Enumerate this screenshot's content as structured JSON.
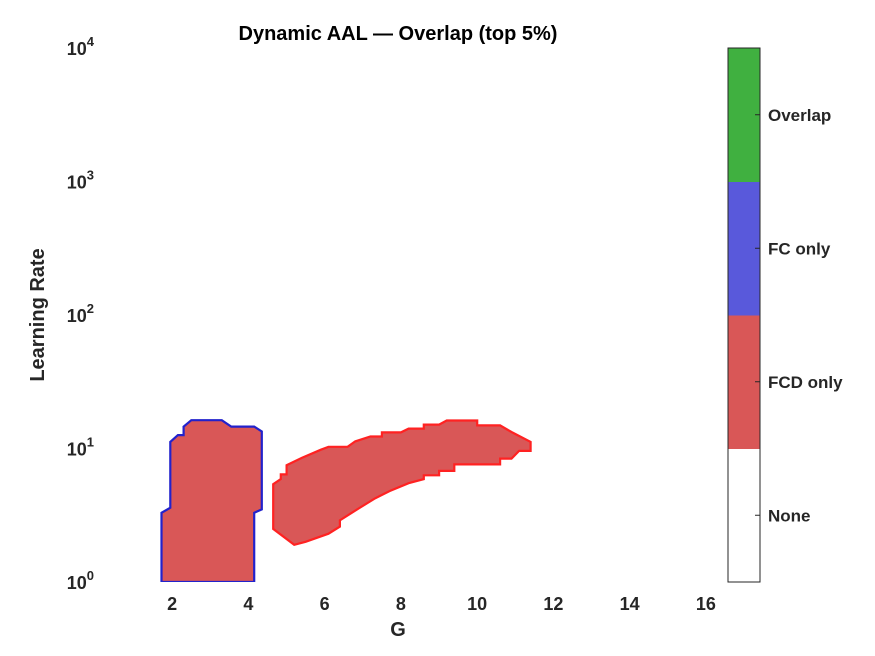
{
  "chart_data": {
    "type": "heatmap",
    "title": "Dynamic AAL — Overlap (top 5%)",
    "xlabel": "G",
    "ylabel": "Learning Rate",
    "xlim": [
      0.5,
      16.5
    ],
    "ylim": [
      1,
      10000
    ],
    "y_scale": "log",
    "x_ticks": [
      2,
      4,
      6,
      8,
      10,
      12,
      14,
      16
    ],
    "y_ticks": [
      {
        "value": 1,
        "base": "10",
        "exp": "0"
      },
      {
        "value": 10,
        "base": "10",
        "exp": "1"
      },
      {
        "value": 100,
        "base": "10",
        "exp": "2"
      },
      {
        "value": 1000,
        "base": "10",
        "exp": "3"
      },
      {
        "value": 10000,
        "base": "10",
        "exp": "4"
      }
    ],
    "categories": [
      "None",
      "FCD only",
      "FC only",
      "Overlap"
    ],
    "category_colors": [
      "#ffffff",
      "#d95757",
      "#5959db",
      "#40b040"
    ],
    "regions": [
      {
        "name": "FCD only (left block)",
        "fill": "#d95757",
        "outline": "#2222cc",
        "points": [
          [
            1.72,
            1
          ],
          [
            1.72,
            3.3
          ],
          [
            1.95,
            3.6
          ],
          [
            1.95,
            11.2
          ],
          [
            2.15,
            12.6
          ],
          [
            2.3,
            12.6
          ],
          [
            2.3,
            14.6
          ],
          [
            2.5,
            16.3
          ],
          [
            3.3,
            16.3
          ],
          [
            3.55,
            14.6
          ],
          [
            4.15,
            14.6
          ],
          [
            4.35,
            13.4
          ],
          [
            4.35,
            3.5
          ],
          [
            4.15,
            3.3
          ],
          [
            4.15,
            1.2
          ],
          [
            4.15,
            1
          ]
        ]
      },
      {
        "name": "FCD only (right block)",
        "fill": "#d95757",
        "outline": "#ff2222",
        "points": [
          [
            4.65,
            5.4
          ],
          [
            4.85,
            5.9
          ],
          [
            4.85,
            6.4
          ],
          [
            5.0,
            6.4
          ],
          [
            5.0,
            7.5
          ],
          [
            5.4,
            8.5
          ],
          [
            5.9,
            9.8
          ],
          [
            6.1,
            10.3
          ],
          [
            6.6,
            10.3
          ],
          [
            6.8,
            11.3
          ],
          [
            7.2,
            12.3
          ],
          [
            7.5,
            12.3
          ],
          [
            7.5,
            13.2
          ],
          [
            8.0,
            13.2
          ],
          [
            8.2,
            14.1
          ],
          [
            8.6,
            14.1
          ],
          [
            8.6,
            15.1
          ],
          [
            9.0,
            15.1
          ],
          [
            9.2,
            16.2
          ],
          [
            10.0,
            16.2
          ],
          [
            10.0,
            14.9
          ],
          [
            10.6,
            14.9
          ],
          [
            10.9,
            13.3
          ],
          [
            11.4,
            11.2
          ],
          [
            11.4,
            9.6
          ],
          [
            11.1,
            9.6
          ],
          [
            10.9,
            8.4
          ],
          [
            10.6,
            8.4
          ],
          [
            10.6,
            7.6
          ],
          [
            10.0,
            7.6
          ],
          [
            9.4,
            7.6
          ],
          [
            9.4,
            6.8
          ],
          [
            9.0,
            6.8
          ],
          [
            9.0,
            6.3
          ],
          [
            8.6,
            6.3
          ],
          [
            8.6,
            5.9
          ],
          [
            8.2,
            5.5
          ],
          [
            7.7,
            4.8
          ],
          [
            7.3,
            4.2
          ],
          [
            6.85,
            3.5
          ],
          [
            6.4,
            2.9
          ],
          [
            6.4,
            2.6
          ],
          [
            6.1,
            2.3
          ],
          [
            5.5,
            2.0
          ],
          [
            5.2,
            1.9
          ],
          [
            4.65,
            2.5
          ]
        ]
      }
    ],
    "colorbar": {
      "labels": [
        "Overlap",
        "FC only",
        "FCD only",
        "None"
      ]
    }
  }
}
